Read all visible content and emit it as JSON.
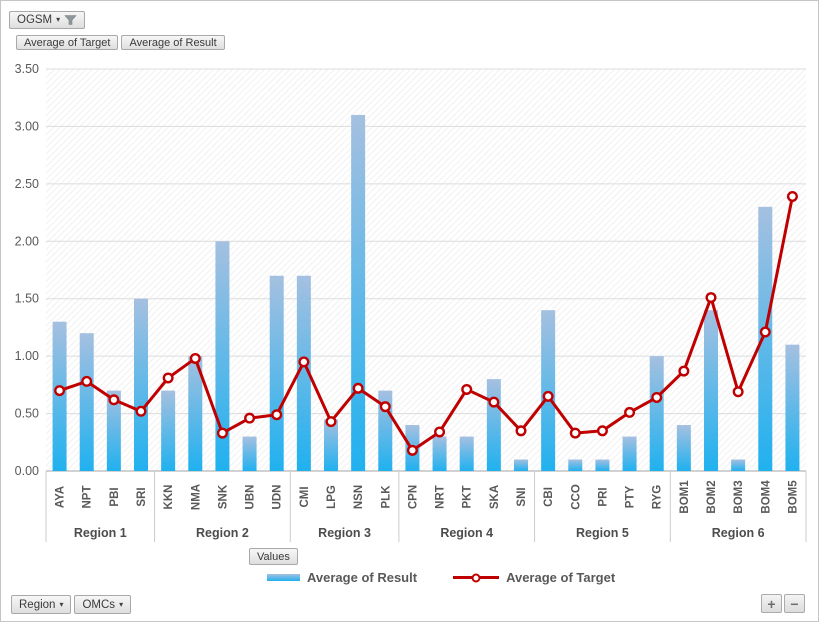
{
  "filter_bar": {
    "field": "OGSM"
  },
  "series_buttons": [
    {
      "label": "Average of Target"
    },
    {
      "label": "Average of Result"
    }
  ],
  "axis_button": {
    "label": "Values"
  },
  "axis_field_buttons": [
    {
      "label": "Region"
    },
    {
      "label": "OMCs"
    }
  ],
  "zoom_controls": {
    "plus": "+",
    "minus": "−"
  },
  "legend": [
    {
      "label": "Average of Result",
      "type": "bar"
    },
    {
      "label": "Average of Target",
      "type": "line"
    }
  ],
  "colors": {
    "bar_gradient_top": "#A5C0E0",
    "bar_gradient_bottom": "#20B1EF",
    "line": "#C00000",
    "gridline": "#DCDCDC",
    "axis_line": "#B8B8B8",
    "divider": "#CBCBCB",
    "tick_text": "#595959",
    "category_text": "#595959",
    "region_text": "#4D4D4D"
  },
  "chart_data": {
    "type": "bar",
    "combo": "bar + line",
    "title": "",
    "xlabel": "",
    "ylabel": "",
    "categories": [
      "AYA",
      "NPT",
      "PBI",
      "SRI",
      "KKN",
      "NMA",
      "SNK",
      "UBN",
      "UDN",
      "CMI",
      "LPG",
      "NSN",
      "PLK",
      "CPN",
      "NRT",
      "PKT",
      "SKA",
      "SNI",
      "CBI",
      "CCO",
      "PRI",
      "PTY",
      "RYG",
      "BOM1",
      "BOM2",
      "BOM3",
      "BOM4",
      "BOM5"
    ],
    "groups": [
      {
        "label": "Region 1",
        "span": 4
      },
      {
        "label": "Region 2",
        "span": 5
      },
      {
        "label": "Region 3",
        "span": 4
      },
      {
        "label": "Region 4",
        "span": 5
      },
      {
        "label": "Region 5",
        "span": 5
      },
      {
        "label": "Region 6",
        "span": 5
      }
    ],
    "series": [
      {
        "name": "Average of Result",
        "type": "bar",
        "values": [
          1.3,
          1.2,
          0.7,
          1.5,
          0.7,
          1.0,
          2.0,
          0.3,
          1.7,
          1.7,
          0.45,
          3.1,
          0.7,
          0.4,
          0.3,
          0.3,
          0.8,
          0.1,
          1.4,
          0.1,
          0.1,
          0.3,
          1.0,
          0.4,
          1.4,
          0.1,
          2.3,
          1.1
        ]
      },
      {
        "name": "Average of Target",
        "type": "line",
        "values": [
          0.7,
          0.78,
          0.62,
          0.52,
          0.81,
          0.98,
          0.33,
          0.46,
          0.49,
          0.95,
          0.43,
          0.72,
          0.56,
          0.18,
          0.34,
          0.71,
          0.6,
          0.35,
          0.65,
          0.33,
          0.35,
          0.51,
          0.64,
          0.87,
          1.51,
          0.69,
          1.21,
          2.39
        ]
      }
    ],
    "ylim": [
      0,
      3.5
    ],
    "ytick_interval": 0.5,
    "ytick_labels": [
      "0.00",
      "0.50",
      "1.00",
      "1.50",
      "2.00",
      "2.50",
      "3.00",
      "3.50"
    ],
    "grid": true,
    "legend_position": "bottom"
  }
}
